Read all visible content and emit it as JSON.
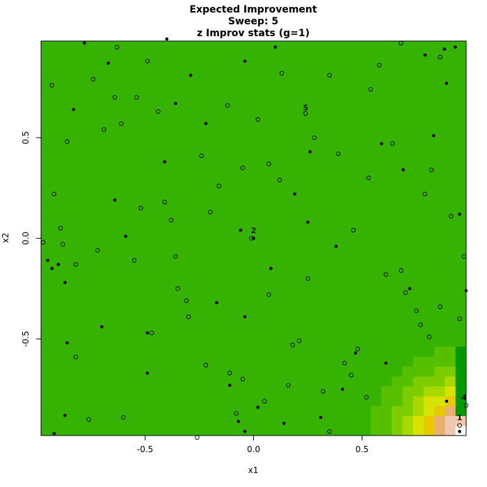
{
  "chart_data": {
    "type": "heatmap",
    "title_lines": [
      "Expected Improvement",
      "Sweep: 5",
      "z Improv stats (g=1)"
    ],
    "xlabel": "x1",
    "ylabel": "x2",
    "xlim": [
      -0.98,
      0.98
    ],
    "ylim": [
      -0.98,
      0.98
    ],
    "xticks": [
      -0.5,
      0.0,
      0.5
    ],
    "xtick_labels": [
      "-0.5",
      "0.0",
      "0.5"
    ],
    "yticks": [
      -0.5,
      0.0,
      0.5
    ],
    "ytick_labels": [
      "-0.5",
      "0.0",
      "0.5"
    ],
    "colors": {
      "background_field": "#35b300",
      "frame": "#000000",
      "palette_low_to_high": [
        "#009900",
        "#1aa600",
        "#35b300",
        "#55bf00",
        "#7ccc00",
        "#a8d800",
        "#d8e300",
        "#e8c800",
        "#e8b070",
        "#f0c8b0",
        "#f6e4dc",
        "#ffffff"
      ]
    },
    "hotspot": {
      "center": [
        0.98,
        -0.98
      ],
      "peak_level": 11,
      "radius": 0.52
    },
    "annotations": [
      {
        "label": "1",
        "x": 0.95,
        "y": -0.89
      },
      {
        "label": "2",
        "x": 0.0,
        "y": 0.04
      },
      {
        "label": "4",
        "x": 0.97,
        "y": -0.79
      },
      {
        "label": "5",
        "x": 0.24,
        "y": 0.65
      }
    ],
    "points_filled": [
      [
        -0.78,
        0.97
      ],
      [
        -0.4,
        0.99
      ],
      [
        -0.67,
        0.87
      ],
      [
        -0.04,
        0.88
      ],
      [
        0.1,
        0.95
      ],
      [
        -0.29,
        0.81
      ],
      [
        0.93,
        0.95
      ],
      [
        0.79,
        0.91
      ],
      [
        0.88,
        0.94
      ],
      [
        0.89,
        0.77
      ],
      [
        -0.83,
        0.64
      ],
      [
        -0.36,
        0.67
      ],
      [
        -0.22,
        0.57
      ],
      [
        0.59,
        0.47
      ],
      [
        0.83,
        0.51
      ],
      [
        0.26,
        0.43
      ],
      [
        0.69,
        0.34
      ],
      [
        -0.41,
        0.38
      ],
      [
        0.19,
        0.22
      ],
      [
        -0.64,
        0.19
      ],
      [
        0.95,
        0.12
      ],
      [
        0.25,
        0.08
      ],
      [
        -0.06,
        0.04
      ],
      [
        0.0,
        0.0
      ],
      [
        -0.59,
        0.01
      ],
      [
        0.38,
        -0.04
      ],
      [
        -0.95,
        -0.11
      ],
      [
        -0.93,
        -0.15
      ],
      [
        -0.9,
        -0.13
      ],
      [
        0.08,
        -0.15
      ],
      [
        -0.87,
        -0.22
      ],
      [
        0.72,
        -0.25
      ],
      [
        0.98,
        -0.26
      ],
      [
        -0.17,
        -0.32
      ],
      [
        -0.04,
        -0.39
      ],
      [
        -0.7,
        -0.44
      ],
      [
        -0.49,
        -0.47
      ],
      [
        -0.86,
        -0.52
      ],
      [
        -0.49,
        -0.67
      ],
      [
        0.47,
        -0.57
      ],
      [
        0.61,
        -0.62
      ],
      [
        -0.11,
        -0.73
      ],
      [
        0.41,
        -0.75
      ],
      [
        0.89,
        -0.81
      ],
      [
        0.02,
        -0.84
      ],
      [
        -0.87,
        -0.88
      ],
      [
        -0.07,
        -0.91
      ],
      [
        0.14,
        -0.92
      ],
      [
        0.31,
        -0.89
      ],
      [
        -0.92,
        -0.97
      ],
      [
        -0.04,
        -0.96
      ],
      [
        0.95,
        -0.96
      ]
    ],
    "points_open": [
      [
        -0.93,
        0.76
      ],
      [
        -0.63,
        0.95
      ],
      [
        -0.74,
        0.79
      ],
      [
        -0.49,
        0.88
      ],
      [
        -0.64,
        0.7
      ],
      [
        -0.54,
        0.7
      ],
      [
        -0.44,
        0.63
      ],
      [
        -0.12,
        0.66
      ],
      [
        0.13,
        0.82
      ],
      [
        0.35,
        0.81
      ],
      [
        0.58,
        0.86
      ],
      [
        0.54,
        0.74
      ],
      [
        0.68,
        0.97
      ],
      [
        0.86,
        0.9
      ],
      [
        -0.69,
        0.54
      ],
      [
        -0.61,
        0.57
      ],
      [
        -0.86,
        0.48
      ],
      [
        0.02,
        0.59
      ],
      [
        0.24,
        0.62
      ],
      [
        0.28,
        0.5
      ],
      [
        0.64,
        0.47
      ],
      [
        -0.24,
        0.41
      ],
      [
        0.39,
        0.42
      ],
      [
        -0.05,
        0.35
      ],
      [
        0.07,
        0.37
      ],
      [
        0.82,
        0.34
      ],
      [
        -0.92,
        0.22
      ],
      [
        -0.16,
        0.26
      ],
      [
        0.12,
        0.29
      ],
      [
        0.53,
        0.3
      ],
      [
        0.79,
        0.22
      ],
      [
        -0.41,
        0.18
      ],
      [
        -0.52,
        0.15
      ],
      [
        -0.2,
        0.13
      ],
      [
        0.91,
        0.11
      ],
      [
        -0.38,
        0.09
      ],
      [
        -0.89,
        0.05
      ],
      [
        -0.97,
        -0.02
      ],
      [
        -0.88,
        -0.03
      ],
      [
        -0.72,
        -0.06
      ],
      [
        -0.01,
        0.0
      ],
      [
        0.46,
        0.04
      ],
      [
        -0.55,
        -0.11
      ],
      [
        -0.36,
        -0.09
      ],
      [
        -0.82,
        -0.13
      ],
      [
        0.97,
        -0.09
      ],
      [
        0.61,
        -0.18
      ],
      [
        0.68,
        -0.16
      ],
      [
        0.25,
        -0.2
      ],
      [
        -0.35,
        -0.25
      ],
      [
        0.7,
        -0.27
      ],
      [
        0.07,
        -0.28
      ],
      [
        -0.31,
        -0.31
      ],
      [
        0.75,
        -0.36
      ],
      [
        0.86,
        -0.34
      ],
      [
        -0.3,
        -0.39
      ],
      [
        0.77,
        -0.43
      ],
      [
        0.95,
        -0.4
      ],
      [
        -0.47,
        -0.47
      ],
      [
        0.81,
        -0.49
      ],
      [
        0.21,
        -0.51
      ],
      [
        0.18,
        -0.53
      ],
      [
        0.48,
        -0.55
      ],
      [
        -0.82,
        -0.59
      ],
      [
        -0.22,
        -0.63
      ],
      [
        0.42,
        -0.62
      ],
      [
        -0.11,
        -0.67
      ],
      [
        0.45,
        -0.68
      ],
      [
        -0.05,
        -0.7
      ],
      [
        0.16,
        -0.73
      ],
      [
        0.32,
        -0.76
      ],
      [
        0.05,
        -0.81
      ],
      [
        0.52,
        -0.79
      ],
      [
        0.98,
        -0.83
      ],
      [
        -0.76,
        -0.9
      ],
      [
        -0.6,
        -0.89
      ],
      [
        -0.08,
        -0.87
      ],
      [
        -0.26,
        -0.99
      ],
      [
        0.35,
        -0.96
      ],
      [
        0.95,
        -0.93
      ]
    ]
  }
}
